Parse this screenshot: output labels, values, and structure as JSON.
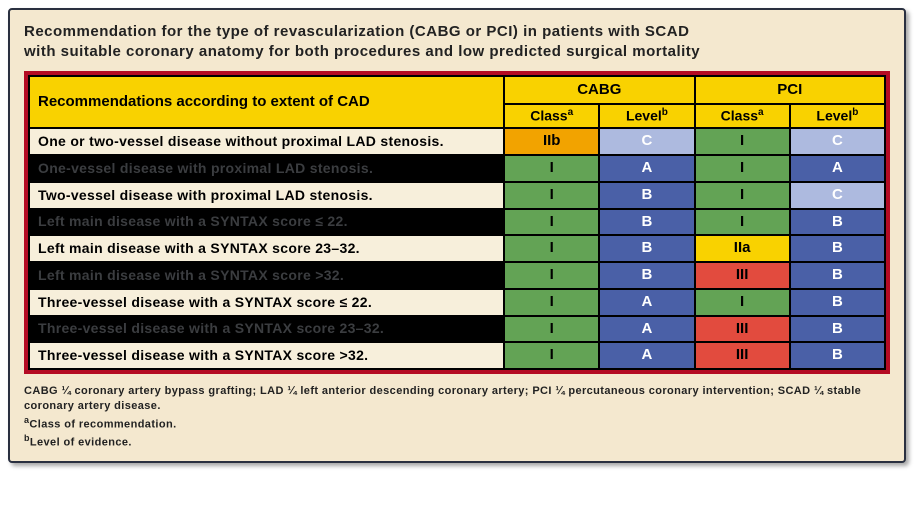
{
  "title_line1": "Recommendation  for the type of revascularization (CABG or PCI) in patients with SCAD",
  "title_line2": "with suitable coronary anatomy  for both procedures and low predicted surgical mortality",
  "header": {
    "main": "Recommendations according to extent of CAD",
    "group1": "CABG",
    "group2": "PCI",
    "class_label": "Class",
    "class_sup": "a",
    "level_label": "Level",
    "level_sup": "b"
  },
  "colors": {
    "green": "c-green",
    "blue": "c-blue",
    "lblue": "c-lblue",
    "orange": "c-orange",
    "amber": "c-amber",
    "red": "c-red"
  },
  "rows": [
    {
      "label": "One or two-vessel disease without  proximal  LAD stenosis.",
      "shade": "light",
      "cabg_class": {
        "v": "IIb",
        "c": "c-orange"
      },
      "cabg_level": {
        "v": "C",
        "c": "c-lblue"
      },
      "pci_class": {
        "v": "I",
        "c": "c-green"
      },
      "pci_level": {
        "v": "C",
        "c": "c-lblue"
      }
    },
    {
      "label": "One-vessel disease with proximal LAD  stenosis.",
      "shade": "dark",
      "cabg_class": {
        "v": "I",
        "c": "c-green"
      },
      "cabg_level": {
        "v": "A",
        "c": "c-blue"
      },
      "pci_class": {
        "v": "I",
        "c": "c-green"
      },
      "pci_level": {
        "v": "A",
        "c": "c-blue"
      }
    },
    {
      "label": "Two-vessel disease with proximal LAD stenosis.",
      "shade": "light",
      "cabg_class": {
        "v": "I",
        "c": "c-green"
      },
      "cabg_level": {
        "v": "B",
        "c": "c-blue"
      },
      "pci_class": {
        "v": "I",
        "c": "c-green"
      },
      "pci_level": {
        "v": "C",
        "c": "c-lblue"
      }
    },
    {
      "label": "Left main disease with a SYNTAX score ≤ 22.",
      "shade": "dark",
      "cabg_class": {
        "v": "I",
        "c": "c-green"
      },
      "cabg_level": {
        "v": "B",
        "c": "c-blue"
      },
      "pci_class": {
        "v": "I",
        "c": "c-green"
      },
      "pci_level": {
        "v": "B",
        "c": "c-blue"
      }
    },
    {
      "label": "Left main disease with a SYNTAX score 23–32.",
      "shade": "light",
      "cabg_class": {
        "v": "I",
        "c": "c-green"
      },
      "cabg_level": {
        "v": "B",
        "c": "c-blue"
      },
      "pci_class": {
        "v": "IIa",
        "c": "c-amber"
      },
      "pci_level": {
        "v": "B",
        "c": "c-blue"
      }
    },
    {
      "label": "Left main disease with a SYNTAX score >32.",
      "shade": "dark",
      "cabg_class": {
        "v": "I",
        "c": "c-green"
      },
      "cabg_level": {
        "v": "B",
        "c": "c-blue"
      },
      "pci_class": {
        "v": "III",
        "c": "c-red"
      },
      "pci_level": {
        "v": "B",
        "c": "c-blue"
      }
    },
    {
      "label": "Three-vessel disease with a SYNTAX score ≤ 22.",
      "shade": "light",
      "cabg_class": {
        "v": "I",
        "c": "c-green"
      },
      "cabg_level": {
        "v": "A",
        "c": "c-blue"
      },
      "pci_class": {
        "v": "I",
        "c": "c-green"
      },
      "pci_level": {
        "v": "B",
        "c": "c-blue"
      }
    },
    {
      "label": "Three-vessel disease with a SYNTAX score 23–32.",
      "shade": "dark",
      "cabg_class": {
        "v": "I",
        "c": "c-green"
      },
      "cabg_level": {
        "v": "A",
        "c": "c-blue"
      },
      "pci_class": {
        "v": "III",
        "c": "c-red"
      },
      "pci_level": {
        "v": "B",
        "c": "c-blue"
      }
    },
    {
      "label": "Three-vessel disease with a SYNTAX score >32.",
      "shade": "light",
      "cabg_class": {
        "v": "I",
        "c": "c-green"
      },
      "cabg_level": {
        "v": "A",
        "c": "c-blue"
      },
      "pci_class": {
        "v": "III",
        "c": "c-red"
      },
      "pci_level": {
        "v": "B",
        "c": "c-blue"
      }
    }
  ],
  "footnotes": {
    "abbr": "CABG ¼ coronary artery bypass grafting; LAD ¼ left anterior descending coronary artery; PCI ¼ percutaneous coronary intervention; SCAD ¼ stable coronary artery disease.",
    "a": "Class of recommendation.",
    "b": "Level of evidence."
  }
}
